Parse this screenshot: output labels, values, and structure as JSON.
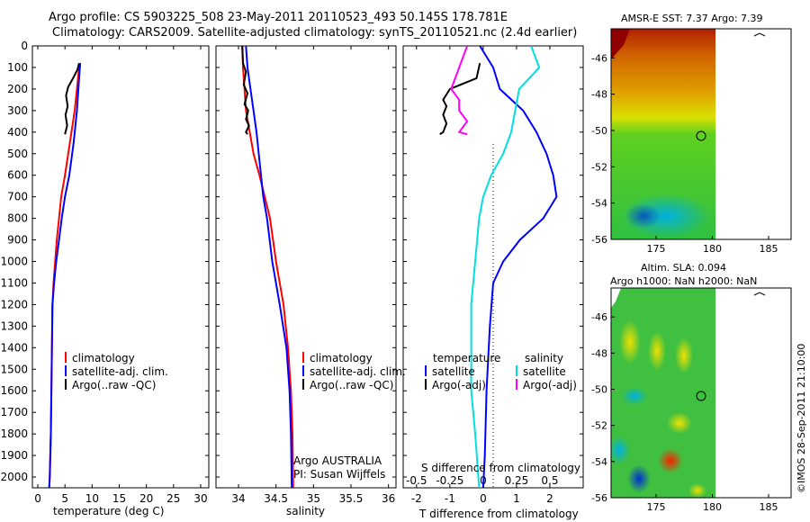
{
  "title_line1": "Argo profile: CS 5903225_508 23-May-2011 20110523_493 50.145S 178.781E",
  "title_line2": "Climatology: CARS2009. Satellite-adjusted climatology: synTS_20110521.nc (2.4d earlier)",
  "imos_stamp": "©IMOS 28-Sep-2011 21:10:00",
  "colors": {
    "climatology": "#ff0000",
    "satellite": "#0000ff",
    "argo": "#000000",
    "sat_salinity": "#00e0e0",
    "argo_salinity": "#ff00ff"
  },
  "chart_data": [
    {
      "type": "line",
      "name": "temperature panel",
      "xlabel": "temperature (deg C)",
      "ylabel": "",
      "xlim": [
        -1,
        31.5
      ],
      "ylim": [
        2050,
        0
      ],
      "x_ticks": [
        "0",
        "5",
        "10",
        "15",
        "20",
        "25",
        "30"
      ],
      "y_ticks": [
        "0",
        "100",
        "200",
        "300",
        "400",
        "500",
        "600",
        "700",
        "800",
        "900",
        "1000",
        "1100",
        "1200",
        "1300",
        "1400",
        "1500",
        "1600",
        "1700",
        "1800",
        "1900",
        "2000"
      ],
      "legend": [
        "climatology",
        "satellite-adj. clim.",
        "Argo(..raw -QC)"
      ],
      "series": [
        {
          "name": "climatology",
          "color": "#ff0000",
          "x": [
            7.7,
            7.4,
            6.8,
            5.9,
            5.0,
            4.3,
            3.9,
            3.5,
            3.2,
            2.9,
            2.7,
            2.6,
            2.5,
            2.4,
            2.3,
            2.2,
            2.1
          ],
          "y": [
            80,
            150,
            300,
            450,
            600,
            700,
            800,
            900,
            1000,
            1100,
            1200,
            1400,
            1600,
            1800,
            1900,
            2000,
            2050
          ]
        },
        {
          "name": "satellite-adj. clim.",
          "color": "#0000ff",
          "x": [
            7.8,
            7.6,
            7.2,
            6.6,
            5.8,
            5.0,
            4.4,
            3.9,
            3.4,
            3.0,
            2.7,
            2.6,
            2.5,
            2.4,
            2.3,
            2.2,
            2.1
          ],
          "y": [
            80,
            150,
            300,
            450,
            600,
            700,
            800,
            900,
            1000,
            1100,
            1200,
            1400,
            1600,
            1800,
            1900,
            2000,
            2050
          ]
        },
        {
          "name": "Argo(..raw -QC)",
          "color": "#000000",
          "x": [
            7.6,
            7.3,
            6.5,
            5.6,
            5.2,
            5.5,
            5.1,
            5.4,
            5.0
          ],
          "y": [
            80,
            110,
            150,
            190,
            230,
            280,
            320,
            370,
            410
          ]
        }
      ]
    },
    {
      "type": "line",
      "name": "salinity panel",
      "xlabel": "salinity",
      "ylabel": "",
      "xlim": [
        33.7,
        36.1
      ],
      "ylim": [
        2050,
        0
      ],
      "x_ticks": [
        "34",
        "34.5",
        "35",
        "35.5",
        "36"
      ],
      "legend": [
        "climatology",
        "satellite-adj. clim.",
        "Argo(..raw -QC)"
      ],
      "annotations": [
        "Argo AUSTRALIA",
        "PI: Susan Wijffels"
      ],
      "series": [
        {
          "name": "climatology",
          "color": "#ff0000",
          "x": [
            34.05,
            34.06,
            34.08,
            34.1,
            34.15,
            34.2,
            34.28,
            34.35,
            34.42,
            34.5,
            34.6,
            34.66,
            34.7,
            34.72,
            34.73
          ],
          "y": [
            0,
            100,
            200,
            300,
            400,
            500,
            600,
            700,
            800,
            1000,
            1200,
            1400,
            1600,
            1800,
            2050
          ]
        },
        {
          "name": "satellite-adj. clim.",
          "color": "#0000ff",
          "x": [
            34.1,
            34.12,
            34.16,
            34.2,
            34.24,
            34.27,
            34.3,
            34.33,
            34.38,
            34.45,
            34.55,
            34.64,
            34.68,
            34.7,
            34.71
          ],
          "y": [
            0,
            100,
            200,
            300,
            400,
            500,
            600,
            700,
            800,
            1000,
            1200,
            1400,
            1600,
            1800,
            2050
          ]
        },
        {
          "name": "Argo(..raw -QC)",
          "color": "#000000",
          "x": [
            34.05,
            34.06,
            34.1,
            34.07,
            34.12,
            34.08,
            34.13,
            34.1,
            34.14,
            34.1,
            34.12
          ],
          "y": [
            0,
            80,
            120,
            180,
            220,
            270,
            300,
            340,
            370,
            400,
            410
          ]
        }
      ]
    },
    {
      "type": "line",
      "name": "difference panel",
      "xlabel": "T difference from climatology",
      "x2label": "S difference from climatology",
      "xlim": [
        -2.4,
        3.0
      ],
      "ylim": [
        2050,
        0
      ],
      "x_ticks": [
        "-2",
        "-1",
        "0",
        "1",
        "2"
      ],
      "x2_ticks": [
        "-0.5",
        "-0.25",
        "0",
        "0.25",
        "0.5"
      ],
      "legend_headers": [
        "temperature",
        "salinity"
      ],
      "legend": [
        "satellite",
        "Argo(-adj)",
        "satellite",
        "Argo(-adj)"
      ],
      "series": [
        {
          "name": "temperature satellite",
          "color": "#0000ff",
          "x": [
            -0.1,
            0.3,
            0.5,
            1.2,
            1.6,
            1.9,
            2.1,
            2.2,
            1.8,
            1.1,
            0.6,
            0.3,
            0.2,
            0.1,
            0.05,
            0.0
          ],
          "y": [
            0,
            100,
            200,
            300,
            400,
            500,
            600,
            700,
            800,
            900,
            1000,
            1100,
            1300,
            1600,
            1900,
            2050
          ]
        },
        {
          "name": "temperature Argo(-adj)",
          "color": "#000000",
          "x": [
            -0.1,
            -0.2,
            -1.0,
            -1.2,
            -1.1,
            -1.2,
            -1.1,
            -1.2,
            -1.3
          ],
          "y": [
            80,
            150,
            200,
            250,
            280,
            320,
            360,
            400,
            410
          ]
        },
        {
          "name": "salinity satellite",
          "color": "#00e0e0",
          "x": [
            0.6,
            0.7,
            0.45,
            0.4,
            0.35,
            0.25,
            0.1,
            0.0,
            -0.05,
            -0.1,
            -0.15,
            -0.15,
            -0.15,
            -0.1,
            -0.05
          ],
          "y": [
            0,
            100,
            200,
            300,
            400,
            500,
            600,
            700,
            800,
            1000,
            1200,
            1400,
            1600,
            1800,
            2050
          ]
        },
        {
          "name": "salinity Argo(-adj)",
          "color": "#ff00ff",
          "x": [
            -0.2,
            -0.3,
            -0.4,
            -0.3,
            -0.3,
            -0.2,
            -0.3,
            -0.2
          ],
          "y": [
            0,
            100,
            200,
            250,
            300,
            350,
            400,
            410
          ]
        }
      ]
    },
    {
      "type": "heatmap",
      "name": "sst map",
      "title": "AMSR-E SST: 7.37 Argo: 7.39",
      "xlim": [
        171,
        187
      ],
      "ylim": [
        -56,
        -44.4
      ],
      "x_ticks": [
        "175",
        "180",
        "185"
      ],
      "y_ticks": [
        "-46",
        "-48",
        "-50",
        "-52",
        "-54",
        "-56"
      ],
      "marker": [
        178.781,
        -50.145
      ]
    },
    {
      "type": "heatmap",
      "name": "sla map",
      "title_line1": "Altim. SLA: 0.094",
      "title_line2": "Argo h1000: NaN h2000: NaN",
      "xlim": [
        171,
        187
      ],
      "ylim": [
        -56,
        -44.4
      ],
      "x_ticks": [
        "175",
        "180",
        "185"
      ],
      "y_ticks": [
        "-46",
        "-48",
        "-50",
        "-52",
        "-54",
        "-56"
      ],
      "marker": [
        178.781,
        -50.145
      ]
    }
  ]
}
